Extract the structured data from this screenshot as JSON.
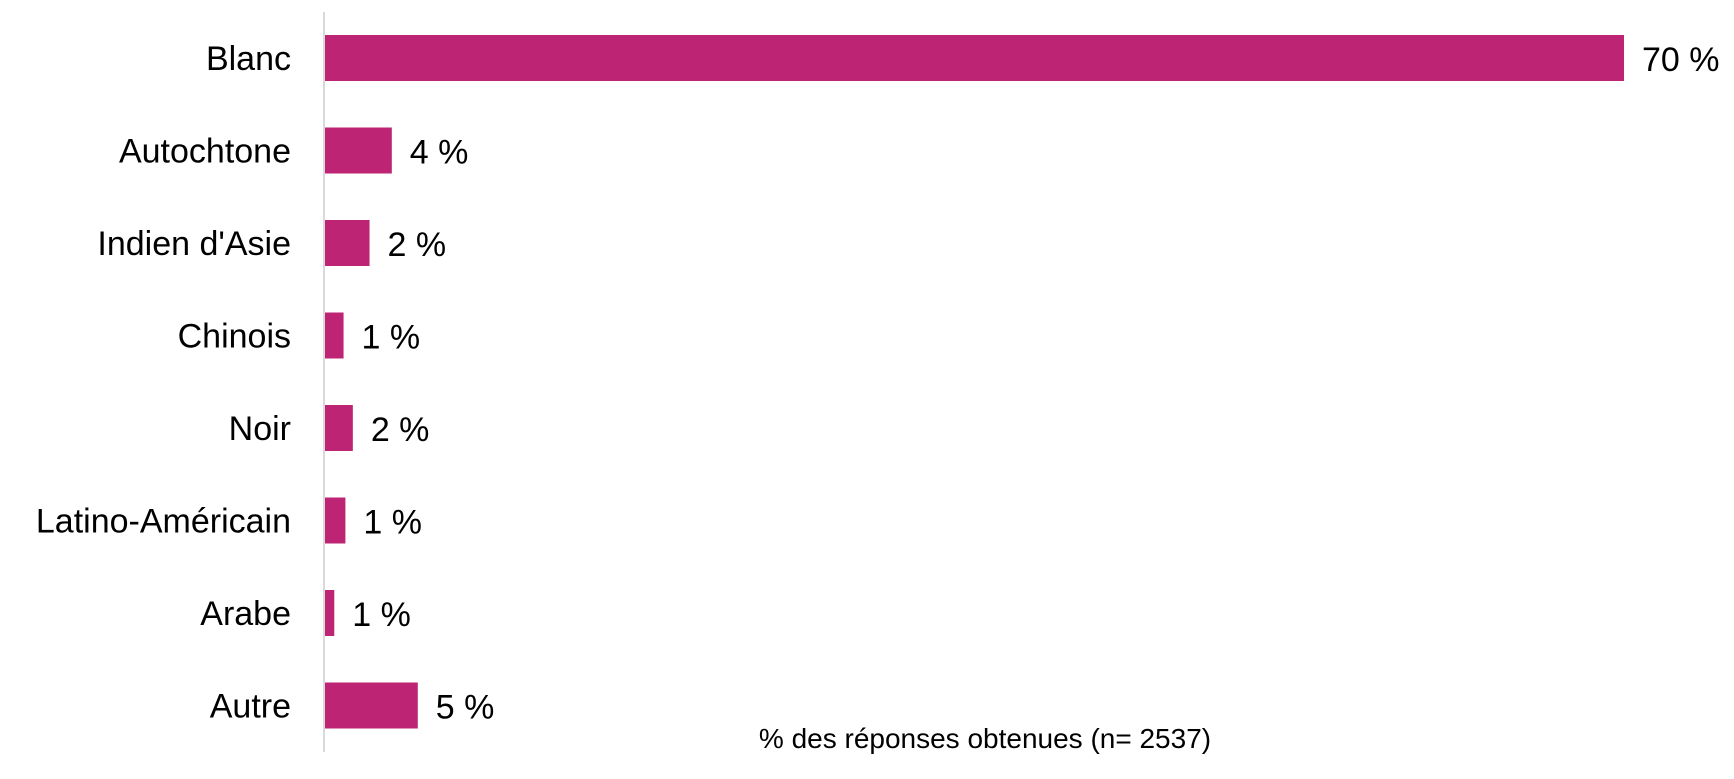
{
  "chart_data": {
    "type": "bar",
    "orientation": "horizontal",
    "categories": [
      "Blanc",
      "Autochtone",
      "Indien d'Asie",
      "Chinois",
      "Noir",
      "Latino-Américain",
      "Arabe",
      "Autre"
    ],
    "values": [
      70,
      3.6,
      2.4,
      1,
      1.5,
      1.1,
      0.5,
      5
    ],
    "value_labels": [
      "70 %",
      "4 %",
      "2 %",
      "1 %",
      "2 %",
      "1 %",
      "1 %",
      "5 %"
    ],
    "xlabel": "% des réponses obtenues (n= 2537)",
    "ylabel": "",
    "xlim": [
      0,
      70
    ],
    "grid": false,
    "legend": "none",
    "bar_color": "#BD2473",
    "axis_color": "#D9D9D9"
  }
}
